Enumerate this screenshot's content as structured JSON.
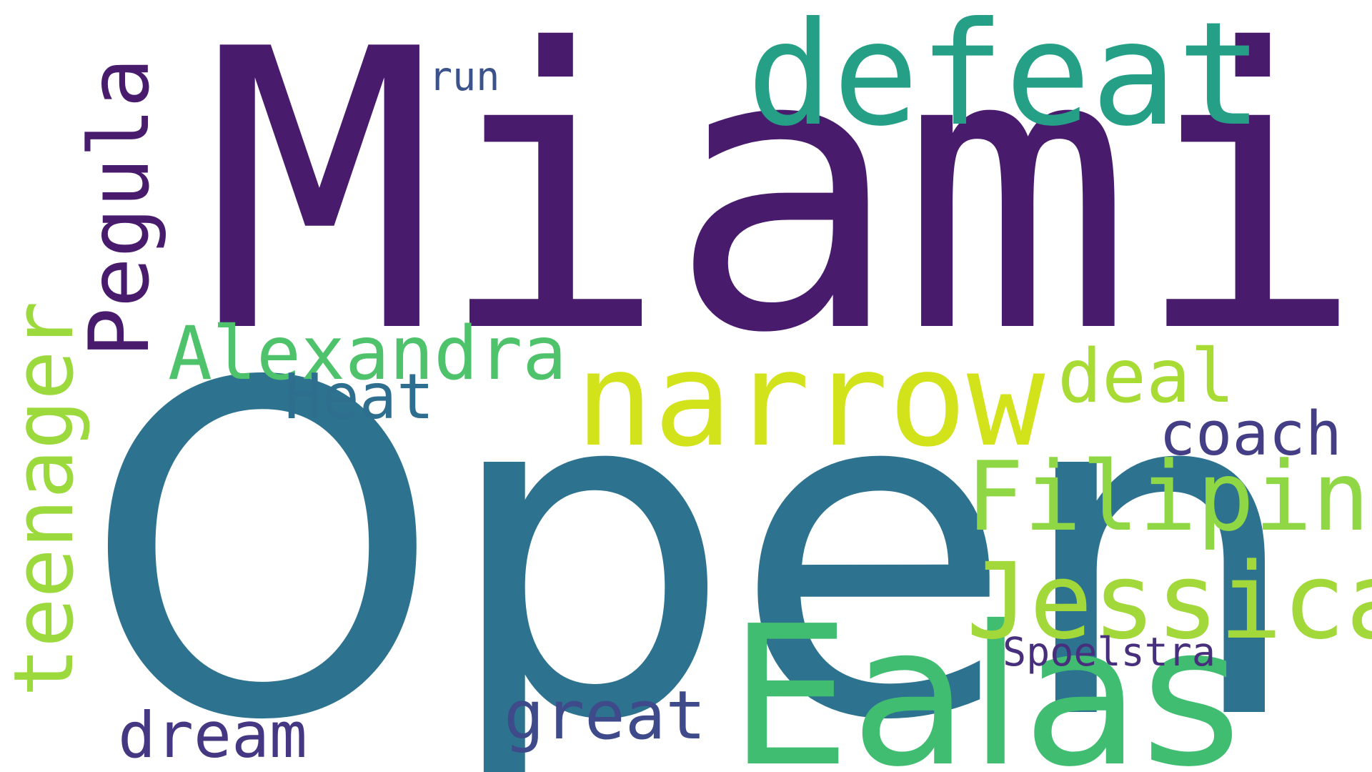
{
  "words": {
    "miami": {
      "text": "Miami",
      "color": "#481b6d"
    },
    "open": {
      "text": "Open",
      "color": "#2d728e"
    },
    "defeat": {
      "text": "defeat",
      "color": "#25a086"
    },
    "ealas": {
      "text": "Ealas",
      "color": "#41bd72"
    },
    "narrow": {
      "text": "narrow",
      "color": "#d2e21b"
    },
    "jessica": {
      "text": "Jessica",
      "color": "#a2d83a"
    },
    "filipina": {
      "text": "Filipina",
      "color": "#8fd744"
    },
    "pegula": {
      "text": "Pegula",
      "color": "#481b6d"
    },
    "teenager": {
      "text": "teenager",
      "color": "#9bd93c"
    },
    "alexandra": {
      "text": "Alexandra",
      "color": "#4ec36b"
    },
    "heat": {
      "text": "Heat",
      "color": "#2e6e8e"
    },
    "deal": {
      "text": "deal",
      "color": "#a8db34"
    },
    "coach": {
      "text": "coach",
      "color": "#433e85"
    },
    "spoelstra": {
      "text": "Spoelstra",
      "color": "#472f7d"
    },
    "great": {
      "text": "great",
      "color": "#3e4a89"
    },
    "dream": {
      "text": "dream",
      "color": "#453781"
    },
    "run": {
      "text": "run",
      "color": "#3b528b"
    }
  }
}
